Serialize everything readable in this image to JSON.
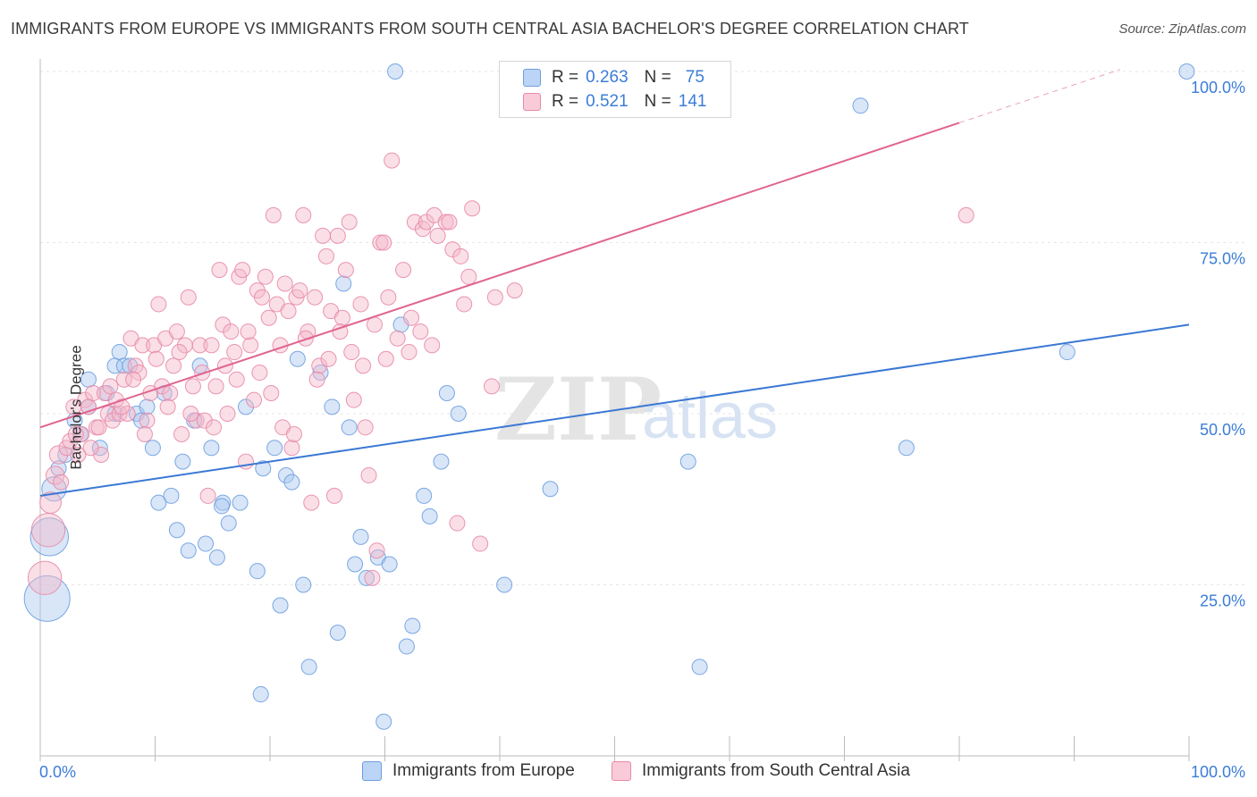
{
  "header": {
    "title": "IMMIGRANTS FROM EUROPE VS IMMIGRANTS FROM SOUTH CENTRAL ASIA BACHELOR'S DEGREE CORRELATION CHART",
    "source": "Source: ZipAtlas.com"
  },
  "watermark": {
    "zip": "ZIP",
    "atlas": "atlas"
  },
  "legend": {
    "rows": [
      {
        "r_label": "R =",
        "r_value": "0.263",
        "n_label": "N =",
        "n_value": "75"
      },
      {
        "r_label": "R =",
        "r_value": "0.521",
        "n_label": "N =",
        "n_value": "141"
      }
    ]
  },
  "colors": {
    "europe_fill": "#a8c8f0",
    "europe_stroke": "#6d9fe0",
    "europe_line": "#3a78d4",
    "asia_fill": "#f5b8ca",
    "asia_stroke": "#e88aa8",
    "asia_line": "#e0648e",
    "tick_label": "#3b7dd8",
    "grid": "#e6e6e6"
  },
  "chart_data": {
    "type": "scatter",
    "title": "IMMIGRANTS FROM EUROPE VS IMMIGRANTS FROM SOUTH CENTRAL ASIA BACHELOR'S DEGREE CORRELATION CHART",
    "xlabel": "",
    "ylabel": "Bachelor's Degree",
    "xlim": [
      0,
      100
    ],
    "ylim": [
      0,
      100
    ],
    "x_tick_labels": [
      "0.0%",
      "100.0%"
    ],
    "y_tick_labels": [
      "25.0%",
      "50.0%",
      "75.0%",
      "100.0%"
    ],
    "y_ticks": [
      25,
      50,
      75,
      100
    ],
    "grid": true,
    "legend_position": "top-center",
    "series": [
      {
        "name": "Immigrants from Europe",
        "trend": {
          "x": [
            0,
            100
          ],
          "y": [
            38.0,
            63.0
          ],
          "dashed_to": null
        },
        "points": [
          [
            0.6,
            23,
            3
          ],
          [
            0.8,
            32,
            2.5
          ],
          [
            1.2,
            39,
            1.6
          ],
          [
            1.6,
            42,
            1
          ],
          [
            2.2,
            44,
            1
          ],
          [
            3,
            49,
            1
          ],
          [
            3.5,
            47,
            1
          ],
          [
            4.2,
            51,
            1
          ],
          [
            4.2,
            55,
            1
          ],
          [
            5.2,
            45,
            1
          ],
          [
            5.8,
            53,
            1
          ],
          [
            6.5,
            50,
            1
          ],
          [
            6.5,
            57,
            1
          ],
          [
            6.9,
            59,
            1
          ],
          [
            7.3,
            57,
            1
          ],
          [
            7.8,
            57,
            1
          ],
          [
            8.4,
            50,
            1
          ],
          [
            8.8,
            49,
            1
          ],
          [
            9.3,
            51,
            1
          ],
          [
            9.8,
            45,
            1
          ],
          [
            10.3,
            37,
            1
          ],
          [
            10.8,
            53,
            1
          ],
          [
            11.4,
            38,
            1
          ],
          [
            11.9,
            33,
            1
          ],
          [
            12.4,
            43,
            1
          ],
          [
            12.9,
            30,
            1
          ],
          [
            13.4,
            49,
            1
          ],
          [
            13.9,
            57,
            1
          ],
          [
            14.4,
            31,
            1
          ],
          [
            14.9,
            45,
            1
          ],
          [
            15.4,
            29,
            1
          ],
          [
            15.9,
            37,
            1
          ],
          [
            16.4,
            34,
            1
          ],
          [
            17.4,
            37,
            1
          ],
          [
            17.9,
            51,
            1
          ],
          [
            18.9,
            27,
            1
          ],
          [
            19.4,
            42,
            1
          ],
          [
            20.4,
            45,
            1
          ],
          [
            20.9,
            22,
            1
          ],
          [
            21.4,
            41,
            1
          ],
          [
            21.9,
            40,
            1
          ],
          [
            22.4,
            58,
            1
          ],
          [
            22.9,
            25,
            1
          ],
          [
            23.4,
            13,
            1
          ],
          [
            24.4,
            56,
            1
          ],
          [
            25.4,
            51,
            1
          ],
          [
            25.9,
            18,
            1
          ],
          [
            26.4,
            69,
            1
          ],
          [
            26.9,
            48,
            1
          ],
          [
            27.4,
            28,
            1
          ],
          [
            27.9,
            32,
            1
          ],
          [
            28.4,
            26,
            1
          ],
          [
            29.4,
            29,
            1
          ],
          [
            29.9,
            5,
            1
          ],
          [
            30.4,
            28,
            1
          ],
          [
            30.9,
            100,
            1
          ],
          [
            31.4,
            63,
            1
          ],
          [
            31.9,
            16,
            1
          ],
          [
            32.4,
            19,
            1
          ],
          [
            33.4,
            38,
            1
          ],
          [
            33.9,
            35,
            1
          ],
          [
            34.9,
            43,
            1
          ],
          [
            35.4,
            53,
            1
          ],
          [
            36.4,
            50,
            1
          ],
          [
            40.4,
            25,
            1
          ],
          [
            44.4,
            39,
            1
          ],
          [
            56.4,
            43,
            1
          ],
          [
            57.4,
            13,
            1
          ],
          [
            71.4,
            95,
            1
          ],
          [
            75.4,
            45,
            1
          ],
          [
            89.4,
            59,
            1
          ],
          [
            99.8,
            100,
            1
          ],
          [
            19.2,
            9,
            1
          ],
          [
            15.8,
            36.5,
            1
          ]
        ]
      },
      {
        "name": "Immigrants from South Central Asia",
        "trend": {
          "x": [
            0,
            80
          ],
          "y": [
            48.0,
            92.5
          ],
          "dashed_to": [
            94,
            100
          ]
        },
        "points": [
          [
            0.4,
            26,
            2.2
          ],
          [
            0.7,
            33,
            2.2
          ],
          [
            0.9,
            37,
            1.4
          ],
          [
            1.3,
            41,
            1.2
          ],
          [
            1.6,
            44,
            1.2
          ],
          [
            1.8,
            40,
            1
          ],
          [
            2.3,
            45,
            1
          ],
          [
            2.6,
            46,
            1
          ],
          [
            2.9,
            51,
            1
          ],
          [
            3.3,
            44,
            1
          ],
          [
            3.6,
            47,
            1
          ],
          [
            3.9,
            52,
            1
          ],
          [
            4.2,
            51,
            1
          ],
          [
            4.6,
            53,
            1
          ],
          [
            4.9,
            48,
            1
          ],
          [
            5.3,
            44,
            1
          ],
          [
            5.6,
            53,
            1
          ],
          [
            5.9,
            50,
            1
          ],
          [
            6.3,
            49,
            1
          ],
          [
            6.6,
            52,
            1
          ],
          [
            6.9,
            50,
            1
          ],
          [
            7.3,
            55,
            1
          ],
          [
            7.6,
            50,
            1
          ],
          [
            7.9,
            61,
            1
          ],
          [
            8.3,
            57,
            1
          ],
          [
            8.6,
            56,
            1
          ],
          [
            8.9,
            60,
            1
          ],
          [
            9.3,
            49,
            1
          ],
          [
            9.6,
            53,
            1
          ],
          [
            9.9,
            60,
            1
          ],
          [
            10.3,
            66,
            1
          ],
          [
            10.6,
            54,
            1
          ],
          [
            10.9,
            61,
            1
          ],
          [
            11.3,
            53,
            1
          ],
          [
            11.6,
            57,
            1
          ],
          [
            11.9,
            62,
            1
          ],
          [
            12.3,
            47,
            1
          ],
          [
            12.6,
            60,
            1
          ],
          [
            12.9,
            67,
            1
          ],
          [
            13.3,
            54,
            1
          ],
          [
            13.6,
            49,
            1
          ],
          [
            13.9,
            60,
            1
          ],
          [
            14.3,
            49,
            1
          ],
          [
            14.6,
            38,
            1
          ],
          [
            14.9,
            60,
            1
          ],
          [
            15.3,
            54,
            1
          ],
          [
            15.6,
            71,
            1
          ],
          [
            15.9,
            63,
            1
          ],
          [
            16.3,
            50,
            1
          ],
          [
            16.6,
            62,
            1
          ],
          [
            16.9,
            59,
            1
          ],
          [
            17.3,
            70,
            1
          ],
          [
            17.6,
            71,
            1
          ],
          [
            17.9,
            43,
            1
          ],
          [
            18.3,
            60,
            1
          ],
          [
            18.6,
            52,
            1
          ],
          [
            18.9,
            68,
            1
          ],
          [
            19.3,
            67,
            1
          ],
          [
            19.6,
            70,
            1
          ],
          [
            19.9,
            64,
            1
          ],
          [
            20.3,
            79,
            1
          ],
          [
            20.6,
            66,
            1
          ],
          [
            20.9,
            60,
            1
          ],
          [
            21.3,
            69,
            1
          ],
          [
            21.6,
            65,
            1
          ],
          [
            21.9,
            45,
            1
          ],
          [
            22.3,
            67,
            1
          ],
          [
            22.6,
            68,
            1
          ],
          [
            22.9,
            79,
            1
          ],
          [
            23.3,
            62,
            1
          ],
          [
            23.6,
            37,
            1
          ],
          [
            23.9,
            67,
            1
          ],
          [
            24.3,
            57,
            1
          ],
          [
            24.6,
            76,
            1
          ],
          [
            24.9,
            73,
            1
          ],
          [
            25.3,
            65,
            1
          ],
          [
            25.6,
            38,
            1
          ],
          [
            25.9,
            76,
            1
          ],
          [
            26.3,
            64,
            1
          ],
          [
            26.6,
            71,
            1
          ],
          [
            26.9,
            78,
            1
          ],
          [
            27.3,
            52,
            1
          ],
          [
            27.9,
            66,
            1
          ],
          [
            28.3,
            48,
            1
          ],
          [
            28.6,
            41,
            1
          ],
          [
            28.9,
            26,
            1
          ],
          [
            29.3,
            30,
            1
          ],
          [
            29.6,
            75,
            1
          ],
          [
            29.9,
            75,
            1
          ],
          [
            30.3,
            67,
            1
          ],
          [
            30.6,
            87,
            1
          ],
          [
            31.6,
            71,
            1
          ],
          [
            32.3,
            64,
            1
          ],
          [
            32.6,
            78,
            1
          ],
          [
            33.3,
            77,
            1
          ],
          [
            33.6,
            78,
            1
          ],
          [
            34.3,
            79,
            1
          ],
          [
            34.6,
            76,
            1
          ],
          [
            35.3,
            78,
            1
          ],
          [
            35.6,
            78,
            1
          ],
          [
            35.9,
            74,
            1
          ],
          [
            36.3,
            34,
            1
          ],
          [
            36.6,
            73,
            1
          ],
          [
            36.9,
            66,
            1
          ],
          [
            37.3,
            70,
            1
          ],
          [
            37.6,
            80,
            1
          ],
          [
            38.3,
            31,
            1
          ],
          [
            39.3,
            54,
            1
          ],
          [
            39.6,
            67,
            1
          ],
          [
            41.3,
            68,
            1
          ],
          [
            80.6,
            79,
            1
          ],
          [
            3.1,
            47,
            1
          ],
          [
            4.4,
            45,
            1
          ],
          [
            5.1,
            48,
            1
          ],
          [
            6.1,
            54,
            1
          ],
          [
            7.1,
            51,
            1
          ],
          [
            8.1,
            55,
            1
          ],
          [
            9.1,
            47,
            1
          ],
          [
            10.1,
            58,
            1
          ],
          [
            11.1,
            51,
            1
          ],
          [
            12.1,
            59,
            1
          ],
          [
            13.1,
            50,
            1
          ],
          [
            14.1,
            56,
            1
          ],
          [
            15.1,
            48,
            1
          ],
          [
            16.1,
            57,
            1
          ],
          [
            17.1,
            55,
            1
          ],
          [
            18.1,
            62,
            1
          ],
          [
            19.1,
            56,
            1
          ],
          [
            20.1,
            53,
            1
          ],
          [
            21.1,
            48,
            1
          ],
          [
            22.1,
            47,
            1
          ],
          [
            23.1,
            61,
            1
          ],
          [
            24.1,
            55,
            1
          ],
          [
            25.1,
            58,
            1
          ],
          [
            26.1,
            62,
            1
          ],
          [
            27.1,
            59,
            1
          ],
          [
            28.1,
            57,
            1
          ],
          [
            29.1,
            63,
            1
          ],
          [
            30.1,
            58,
            1
          ],
          [
            31.1,
            61,
            1
          ],
          [
            32.1,
            59,
            1
          ],
          [
            33.1,
            62,
            1
          ],
          [
            34.1,
            60,
            1
          ]
        ]
      }
    ]
  },
  "bottom_legend": {
    "items": [
      "Immigrants from Europe",
      "Immigrants from South Central Asia"
    ]
  }
}
